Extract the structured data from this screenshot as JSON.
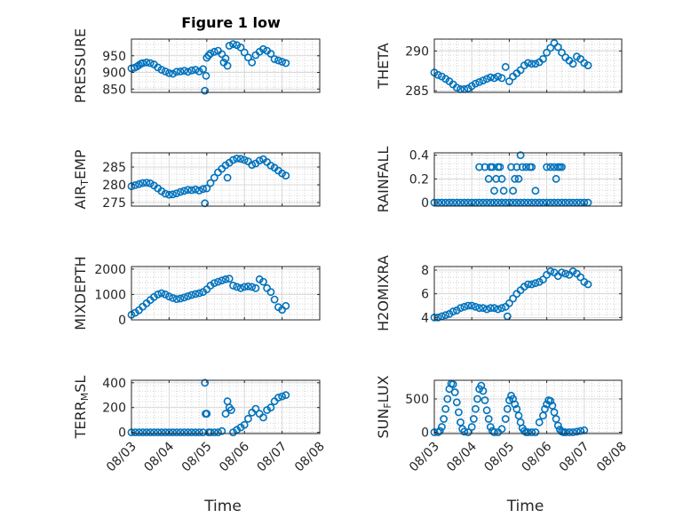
{
  "figure": {
    "title": "Figure 1 low",
    "xlabel": "Time",
    "marker_color": "#0072BD"
  },
  "x_ticks": [
    {
      "value": 0,
      "label": "08/03"
    },
    {
      "value": 1,
      "label": "08/04"
    },
    {
      "value": 2,
      "label": "08/05"
    },
    {
      "value": 3,
      "label": "08/06"
    },
    {
      "value": 4,
      "label": "08/07"
    },
    {
      "value": 5,
      "label": "08/08"
    }
  ],
  "chart_data": [
    {
      "type": "scatter",
      "id": "pressure",
      "ylabel_parts": [
        {
          "t": "PRESSURE"
        }
      ],
      "xlim": [
        0,
        5
      ],
      "ylim": [
        840,
        1000
      ],
      "yticks": [
        850,
        900,
        950
      ],
      "x": [
        0.0,
        0.08,
        0.15,
        0.2,
        0.25,
        0.3,
        0.4,
        0.5,
        0.6,
        0.7,
        0.8,
        0.9,
        1.0,
        1.1,
        1.2,
        1.3,
        1.4,
        1.5,
        1.6,
        1.7,
        1.8,
        1.9,
        1.95,
        1.98,
        2.0,
        2.05,
        2.1,
        2.2,
        2.3,
        2.4,
        2.45,
        2.5,
        2.55,
        2.6,
        2.7,
        2.8,
        2.9,
        3.0,
        3.1,
        3.2,
        3.3,
        3.4,
        3.5,
        3.6,
        3.7,
        3.8,
        3.9,
        4.0,
        4.1
      ],
      "y": [
        912,
        914,
        918,
        922,
        926,
        928,
        930,
        928,
        924,
        915,
        908,
        903,
        898,
        896,
        902,
        903,
        905,
        902,
        906,
        908,
        903,
        910,
        845,
        890,
        944,
        951,
        957,
        962,
        965,
        955,
        930,
        942,
        920,
        980,
        985,
        982,
        975,
        960,
        945,
        930,
        952,
        962,
        970,
        965,
        956,
        940,
        936,
        932,
        928
      ]
    },
    {
      "type": "scatter",
      "id": "theta",
      "ylabel_parts": [
        {
          "t": "THETA"
        }
      ],
      "xlim": [
        0,
        5
      ],
      "ylim": [
        284.8,
        291.5
      ],
      "yticks": [
        285,
        290
      ],
      "x": [
        0.0,
        0.1,
        0.2,
        0.3,
        0.4,
        0.5,
        0.6,
        0.7,
        0.8,
        0.9,
        1.0,
        1.1,
        1.2,
        1.3,
        1.4,
        1.5,
        1.6,
        1.7,
        1.8,
        1.9,
        2.0,
        2.1,
        2.2,
        2.3,
        2.4,
        2.5,
        2.6,
        2.7,
        2.8,
        2.9,
        3.0,
        3.1,
        3.2,
        3.3,
        3.4,
        3.5,
        3.6,
        3.7,
        3.8,
        3.9,
        4.0,
        4.1
      ],
      "y": [
        287.3,
        287.0,
        286.8,
        286.5,
        286.2,
        285.8,
        285.4,
        285.2,
        285.2,
        285.3,
        285.6,
        285.9,
        286.1,
        286.3,
        286.5,
        286.7,
        286.6,
        286.8,
        286.6,
        288.0,
        286.2,
        286.8,
        287.2,
        287.6,
        288.2,
        288.5,
        288.4,
        288.4,
        288.6,
        289.0,
        289.8,
        290.4,
        291.0,
        290.5,
        289.8,
        289.2,
        288.8,
        288.4,
        289.3,
        289.0,
        288.5,
        288.2
      ]
    },
    {
      "type": "scatter",
      "id": "airtemp",
      "ylabel_parts": [
        {
          "t": "AIR"
        },
        {
          "t": "T",
          "sub": true
        },
        {
          "t": "EMP"
        }
      ],
      "xlim": [
        0,
        5
      ],
      "ylim": [
        274,
        289
      ],
      "yticks": [
        275,
        280,
        285
      ],
      "x": [
        0.0,
        0.1,
        0.2,
        0.3,
        0.4,
        0.5,
        0.6,
        0.7,
        0.8,
        0.9,
        1.0,
        1.1,
        1.2,
        1.3,
        1.4,
        1.5,
        1.6,
        1.7,
        1.8,
        1.9,
        1.95,
        2.0,
        2.1,
        2.2,
        2.3,
        2.4,
        2.5,
        2.55,
        2.6,
        2.7,
        2.8,
        2.9,
        3.0,
        3.1,
        3.2,
        3.3,
        3.4,
        3.5,
        3.6,
        3.7,
        3.8,
        3.9,
        4.0,
        4.1
      ],
      "y": [
        279.6,
        279.9,
        280.2,
        280.5,
        280.6,
        280.4,
        279.8,
        279.0,
        278.2,
        277.5,
        277.2,
        277.3,
        277.6,
        278.0,
        278.3,
        278.6,
        278.5,
        278.7,
        278.4,
        278.8,
        274.8,
        279.0,
        280.5,
        282.0,
        283.5,
        284.5,
        285.5,
        282.0,
        286.2,
        287.0,
        287.4,
        287.3,
        287.0,
        286.6,
        285.6,
        286.0,
        286.8,
        287.2,
        286.4,
        285.4,
        284.8,
        284.0,
        283.2,
        282.6
      ]
    },
    {
      "type": "scatter",
      "id": "rainfall",
      "ylabel_parts": [
        {
          "t": "RAINFALL"
        }
      ],
      "xlim": [
        0,
        5
      ],
      "ylim": [
        -0.03,
        0.42
      ],
      "yticks": [
        0,
        0.2,
        0.4
      ],
      "x": [
        0.0,
        0.1,
        0.2,
        0.3,
        0.4,
        0.5,
        0.6,
        0.7,
        0.8,
        0.9,
        1.0,
        1.1,
        1.2,
        1.3,
        1.4,
        1.5,
        1.6,
        1.7,
        1.8,
        1.9,
        2.0,
        2.1,
        2.2,
        2.3,
        2.4,
        2.5,
        2.6,
        2.7,
        2.8,
        2.9,
        3.0,
        3.1,
        3.2,
        3.3,
        3.4,
        3.5,
        3.6,
        3.7,
        3.8,
        3.9,
        4.0,
        4.1,
        1.2,
        1.35,
        1.45,
        1.5,
        1.55,
        1.6,
        1.65,
        1.7,
        1.75,
        1.8,
        1.85,
        2.05,
        2.1,
        2.15,
        2.2,
        2.25,
        2.3,
        2.35,
        2.45,
        2.55,
        2.6,
        2.7,
        3.0,
        3.1,
        3.2,
        3.25,
        3.3,
        3.35,
        3.4
      ],
      "y": [
        0,
        0,
        0,
        0,
        0,
        0,
        0,
        0,
        0,
        0,
        0,
        0,
        0,
        0,
        0,
        0,
        0,
        0,
        0,
        0,
        0,
        0,
        0,
        0,
        0,
        0,
        0,
        0,
        0,
        0,
        0,
        0,
        0,
        0,
        0,
        0,
        0,
        0,
        0,
        0,
        0,
        0,
        0.3,
        0.3,
        0.2,
        0.3,
        0.3,
        0.1,
        0.2,
        0.3,
        0.3,
        0.2,
        0.1,
        0.3,
        0.1,
        0.2,
        0.3,
        0.2,
        0.4,
        0.3,
        0.3,
        0.3,
        0.3,
        0.1,
        0.3,
        0.3,
        0.3,
        0.2,
        0.3,
        0.3,
        0.3
      ]
    },
    {
      "type": "scatter",
      "id": "mixdepth",
      "ylabel_parts": [
        {
          "t": "MIXDEPTH"
        }
      ],
      "xlim": [
        0,
        5
      ],
      "ylim": [
        0,
        2100
      ],
      "yticks": [
        0,
        1000,
        2000
      ],
      "x": [
        0.0,
        0.1,
        0.2,
        0.3,
        0.4,
        0.5,
        0.6,
        0.7,
        0.8,
        0.9,
        1.0,
        1.1,
        1.2,
        1.3,
        1.4,
        1.5,
        1.6,
        1.7,
        1.8,
        1.9,
        2.0,
        2.1,
        2.2,
        2.3,
        2.4,
        2.5,
        2.6,
        2.7,
        2.8,
        2.9,
        3.0,
        3.1,
        3.2,
        3.3,
        3.4,
        3.5,
        3.6,
        3.7,
        3.8,
        3.9,
        4.0,
        4.1
      ],
      "y": [
        200,
        280,
        380,
        520,
        650,
        780,
        900,
        1000,
        1050,
        1000,
        920,
        860,
        820,
        840,
        880,
        930,
        980,
        1020,
        1050,
        1100,
        1200,
        1350,
        1450,
        1500,
        1550,
        1600,
        1620,
        1350,
        1300,
        1250,
        1300,
        1320,
        1300,
        1250,
        1600,
        1500,
        1250,
        1100,
        800,
        500,
        400,
        550
      ]
    },
    {
      "type": "scatter",
      "id": "h2omixra",
      "ylabel_parts": [
        {
          "t": "H2OMIXRA"
        }
      ],
      "xlim": [
        0,
        5
      ],
      "ylim": [
        3.8,
        8.3
      ],
      "yticks": [
        4,
        6,
        8
      ],
      "x": [
        0.0,
        0.1,
        0.2,
        0.3,
        0.4,
        0.5,
        0.6,
        0.7,
        0.8,
        0.9,
        1.0,
        1.1,
        1.2,
        1.3,
        1.4,
        1.5,
        1.6,
        1.7,
        1.8,
        1.9,
        1.95,
        2.0,
        2.1,
        2.2,
        2.3,
        2.4,
        2.5,
        2.6,
        2.7,
        2.8,
        2.9,
        3.0,
        3.1,
        3.2,
        3.3,
        3.4,
        3.5,
        3.6,
        3.7,
        3.8,
        3.9,
        4.0,
        4.1
      ],
      "y": [
        4.0,
        4.0,
        4.1,
        4.2,
        4.3,
        4.5,
        4.6,
        4.8,
        4.9,
        5.0,
        5.0,
        4.9,
        4.8,
        4.8,
        4.7,
        4.8,
        4.8,
        4.7,
        4.8,
        4.9,
        4.1,
        5.2,
        5.6,
        6.0,
        6.3,
        6.6,
        6.8,
        6.8,
        6.9,
        7.0,
        7.2,
        7.6,
        7.9,
        7.8,
        7.5,
        7.8,
        7.7,
        7.6,
        7.9,
        7.7,
        7.4,
        7.0,
        6.8
      ]
    },
    {
      "type": "scatter",
      "id": "terrmsl",
      "ylabel_parts": [
        {
          "t": "TERR"
        },
        {
          "t": "M",
          "sub": true
        },
        {
          "t": "SL"
        }
      ],
      "xlim": [
        0,
        5
      ],
      "ylim": [
        -10,
        420
      ],
      "yticks": [
        0,
        200,
        400
      ],
      "x": [
        0.0,
        0.1,
        0.2,
        0.3,
        0.4,
        0.5,
        0.6,
        0.7,
        0.8,
        0.9,
        1.0,
        1.1,
        1.2,
        1.3,
        1.4,
        1.5,
        1.6,
        1.7,
        1.8,
        1.9,
        1.95,
        1.97,
        2.0,
        2.05,
        2.1,
        2.2,
        2.3,
        2.4,
        2.5,
        2.55,
        2.6,
        2.65,
        2.7,
        2.8,
        2.9,
        3.0,
        3.1,
        3.2,
        3.3,
        3.4,
        3.5,
        3.6,
        3.7,
        3.8,
        3.9,
        4.0,
        4.1
      ],
      "y": [
        0,
        0,
        0,
        0,
        0,
        0,
        0,
        0,
        0,
        0,
        0,
        0,
        0,
        0,
        0,
        0,
        0,
        0,
        0,
        0,
        400,
        150,
        150,
        0,
        0,
        0,
        0,
        10,
        150,
        250,
        200,
        180,
        0,
        20,
        40,
        60,
        110,
        160,
        190,
        150,
        120,
        180,
        200,
        250,
        280,
        290,
        300
      ]
    },
    {
      "type": "scatter",
      "id": "sunflux",
      "ylabel_parts": [
        {
          "t": "SUN"
        },
        {
          "t": "F",
          "sub": true
        },
        {
          "t": "LUX"
        }
      ],
      "xlim": [
        0,
        5
      ],
      "ylim": [
        -20,
        780
      ],
      "yticks": [
        0,
        500
      ],
      "x": [
        0.0,
        0.1,
        0.15,
        0.2,
        0.25,
        0.3,
        0.35,
        0.4,
        0.45,
        0.5,
        0.55,
        0.6,
        0.65,
        0.7,
        0.75,
        0.8,
        0.9,
        1.0,
        1.05,
        1.1,
        1.15,
        1.2,
        1.25,
        1.3,
        1.35,
        1.4,
        1.45,
        1.5,
        1.55,
        1.6,
        1.7,
        1.8,
        1.9,
        1.95,
        2.0,
        2.05,
        2.1,
        2.15,
        2.2,
        2.25,
        2.3,
        2.35,
        2.4,
        2.45,
        2.5,
        2.6,
        2.7,
        2.8,
        2.9,
        2.95,
        3.0,
        3.05,
        3.1,
        3.15,
        3.2,
        3.25,
        3.3,
        3.35,
        3.4,
        3.45,
        3.5,
        3.6,
        3.7,
        3.8,
        3.9,
        4.0
      ],
      "y": [
        0,
        0,
        20,
        80,
        200,
        350,
        500,
        650,
        730,
        720,
        600,
        450,
        300,
        150,
        50,
        10,
        0,
        80,
        200,
        350,
        500,
        650,
        700,
        620,
        480,
        330,
        200,
        80,
        20,
        0,
        0,
        50,
        200,
        350,
        480,
        550,
        500,
        420,
        350,
        250,
        150,
        60,
        20,
        0,
        0,
        0,
        0,
        150,
        250,
        350,
        420,
        480,
        470,
        400,
        300,
        200,
        100,
        40,
        10,
        0,
        0,
        0,
        0,
        10,
        20,
        30
      ]
    }
  ]
}
